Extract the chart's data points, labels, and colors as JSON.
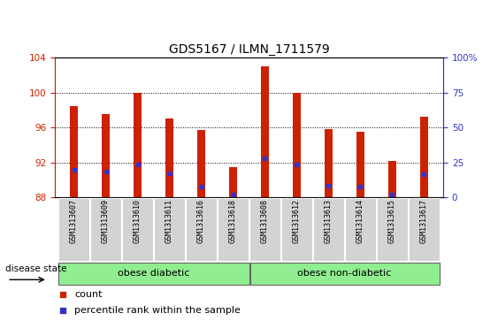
{
  "title": "GDS5167 / ILMN_1711579",
  "samples": [
    "GSM1313607",
    "GSM1313609",
    "GSM1313610",
    "GSM1313611",
    "GSM1313616",
    "GSM1313618",
    "GSM1313608",
    "GSM1313612",
    "GSM1313613",
    "GSM1313614",
    "GSM1313615",
    "GSM1313617"
  ],
  "bar_tops": [
    98.5,
    97.5,
    100.0,
    97.0,
    95.7,
    91.5,
    103.0,
    100.0,
    95.8,
    95.5,
    92.2,
    97.2
  ],
  "bar_base": 88.0,
  "blue_marks": [
    91.2,
    91.0,
    91.8,
    90.8,
    89.2,
    88.3,
    92.5,
    91.8,
    89.3,
    89.2,
    88.3,
    90.7
  ],
  "ylim_left": [
    88,
    104
  ],
  "ylim_right": [
    0,
    100
  ],
  "yticks_left": [
    88,
    92,
    96,
    100,
    104
  ],
  "yticks_right": [
    0,
    25,
    50,
    75,
    100
  ],
  "bar_color": "#cc2200",
  "blue_color": "#3333cc",
  "group1_label": "obese diabetic",
  "group2_label": "obese non-diabetic",
  "group1_count": 6,
  "group2_count": 6,
  "disease_state_label": "disease state",
  "legend_count_label": "count",
  "legend_pct_label": "percentile rank within the sample",
  "bg_group": "#90ee90",
  "title_fontsize": 10,
  "tick_fontsize": 7.5,
  "label_fontsize": 8,
  "bar_width": 0.25
}
